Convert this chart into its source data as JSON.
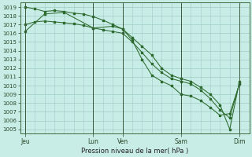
{
  "title": "Pression niveau de la mer( hPa )",
  "bg_color": "#c8ece6",
  "grid_color": "#9dcdc4",
  "line_color": "#2d6a2d",
  "marker_color": "#2d6a2d",
  "ylim": [
    1004.5,
    1019.5
  ],
  "yticks": [
    1005,
    1006,
    1007,
    1008,
    1009,
    1010,
    1011,
    1012,
    1013,
    1014,
    1015,
    1016,
    1017,
    1018,
    1019
  ],
  "xlabel": "Pression niveau de la mer( hPa )",
  "xtick_labels": [
    "Jeu",
    "Lun",
    "Ven",
    "Sam",
    "Dim"
  ],
  "xtick_positions": [
    0,
    14,
    20,
    32,
    44
  ],
  "total_points": 46,
  "xlim": [
    -1,
    46
  ],
  "line1_x": [
    0,
    2,
    4,
    6,
    8,
    10,
    12,
    14,
    16,
    18,
    20,
    22,
    24,
    26,
    28,
    30,
    32,
    34,
    36,
    38,
    40,
    42,
    44
  ],
  "line1_y": [
    1017.0,
    1017.3,
    1017.4,
    1017.3,
    1017.2,
    1017.1,
    1016.9,
    1016.6,
    1016.4,
    1016.2,
    1016.0,
    1015.0,
    1013.8,
    1012.5,
    1011.5,
    1010.8,
    1010.5,
    1010.2,
    1009.5,
    1008.5,
    1007.2,
    1006.3,
    1010.3
  ],
  "line2_x": [
    0,
    2,
    4,
    6,
    8,
    10,
    12,
    14,
    16,
    18,
    20,
    22,
    24,
    26,
    28,
    30,
    32,
    34,
    36,
    38,
    40,
    42,
    44
  ],
  "line2_y": [
    1019.0,
    1018.8,
    1018.5,
    1018.6,
    1018.5,
    1018.3,
    1018.2,
    1017.9,
    1017.5,
    1017.0,
    1016.5,
    1015.5,
    1014.5,
    1013.5,
    1012.0,
    1011.2,
    1010.8,
    1010.5,
    1009.8,
    1009.0,
    1007.8,
    1005.0,
    1010.5
  ],
  "line3_x": [
    0,
    4,
    8,
    14,
    18,
    20,
    22,
    24,
    26,
    28,
    30,
    32,
    34,
    36,
    38,
    40,
    42,
    44
  ],
  "line3_y": [
    1016.2,
    1018.2,
    1018.4,
    1016.6,
    1016.8,
    1016.5,
    1015.2,
    1013.0,
    1011.2,
    1010.5,
    1010.0,
    1009.0,
    1008.8,
    1008.3,
    1007.5,
    1006.6,
    1006.8,
    1010.2
  ]
}
